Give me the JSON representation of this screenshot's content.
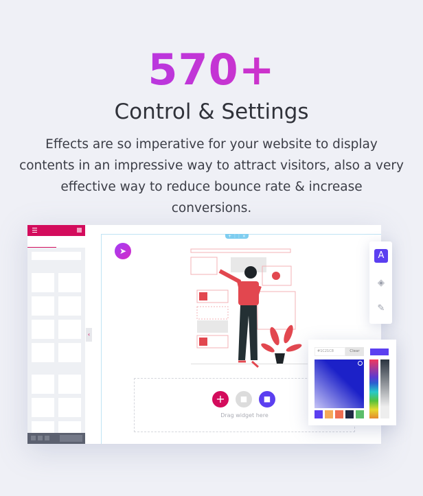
{
  "hero": {
    "count": "570+",
    "title": "Control & Settings",
    "description": "Effects are so imperative for your website to display contents in an impressive way to attract visitors, also a very effective way to reduce bounce rate & increase conversions."
  },
  "editor": {
    "drop_zone_text": "Drag widget here",
    "color_picker": {
      "hex_value": "#1C21C8",
      "clear_label": "Clear",
      "selected_color": "#5b3ff0",
      "swatches": [
        "#5b3ff0",
        "#f5a959",
        "#ef6e52",
        "#1f2a44",
        "#5bbd6b"
      ]
    },
    "toolbar": {
      "icons": [
        "typography-icon",
        "fill-bucket-icon",
        "brush-icon"
      ]
    },
    "colors": {
      "brand": "#d30c5c",
      "accent": "#5b3ff0"
    }
  }
}
